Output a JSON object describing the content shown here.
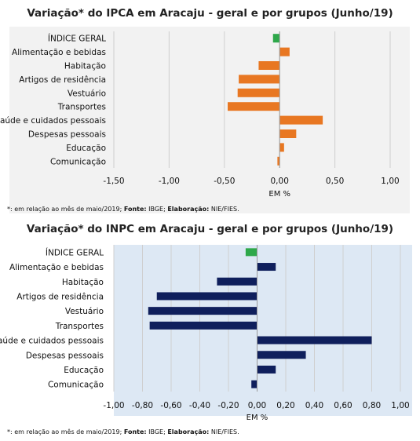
{
  "chart_data": [
    {
      "type": "bar",
      "orientation": "horizontal",
      "title": "Variação* do IPCA em Aracaju - geral e por grupos (Junho/19)",
      "xlabel": "EM %",
      "xlim": [
        -1.5,
        1.0
      ],
      "xticks": [
        "-1,50",
        "-1,00",
        "-0,50",
        "0,00",
        "0,50",
        "1,00"
      ],
      "xtick_values": [
        -1.5,
        -1.0,
        -0.5,
        0.0,
        0.5,
        1.0
      ],
      "categories": [
        "ÍNDICE GERAL",
        "Alimentação e bebidas",
        "Habitação",
        "Artigos de residência",
        "Vestuário",
        "Transportes",
        "Saúde e cuidados pessoais",
        "Despesas pessoais",
        "Educação",
        "Comunicação"
      ],
      "values": [
        -0.06,
        0.09,
        -0.19,
        -0.37,
        -0.38,
        -0.47,
        0.39,
        0.15,
        0.04,
        -0.02
      ],
      "bar_colors": [
        "#2ea84a",
        "#e87722",
        "#e87722",
        "#e87722",
        "#e87722",
        "#e87722",
        "#e87722",
        "#e87722",
        "#e87722",
        "#e87722"
      ],
      "plot_background": "#f2f2f2",
      "grid": "vertical",
      "note": {
        "prefix": "*: em relação ao mês de maio/2019;",
        "fonte_label": "Fonte:",
        "fonte_value": "IBGE;",
        "elab_label": "Elaboração:",
        "elab_value": "NIE/FIES."
      }
    },
    {
      "type": "bar",
      "orientation": "horizontal",
      "title": "Variação* do INPC em Aracaju - geral e por grupos (Junho/19)",
      "xlabel": "EM %",
      "xlim": [
        -1.0,
        1.0
      ],
      "xticks": [
        "-1,00",
        "-0,80",
        "-0,60",
        "-0,40",
        "-0,20",
        "0,00",
        "0,20",
        "0,40",
        "0,60",
        "0,80",
        "1,00"
      ],
      "xtick_values": [
        -1.0,
        -0.8,
        -0.6,
        -0.4,
        -0.2,
        0.0,
        0.2,
        0.4,
        0.6,
        0.8,
        1.0
      ],
      "categories": [
        "ÍNDICE GERAL",
        "Alimentação e bebidas",
        "Habitação",
        "Artigos de residência",
        "Vestuário",
        "Transportes",
        "Saúde e cuidados pessoais",
        "Despesas pessoais",
        "Educação",
        "Comunicação"
      ],
      "values": [
        -0.08,
        0.13,
        -0.28,
        -0.7,
        -0.76,
        -0.75,
        0.8,
        0.34,
        0.13,
        -0.04
      ],
      "bar_colors": [
        "#2ea84a",
        "#0f1f5c",
        "#0f1f5c",
        "#0f1f5c",
        "#0f1f5c",
        "#0f1f5c",
        "#0f1f5c",
        "#0f1f5c",
        "#0f1f5c",
        "#0f1f5c"
      ],
      "plot_background": "#dde8f4",
      "grid": "vertical",
      "note": {
        "prefix": "*: em relação ao mês de maio/2019;",
        "fonte_label": "Fonte:",
        "fonte_value": "IBGE;",
        "elab_label": "Elaboração:",
        "elab_value": "NIE/FIES."
      }
    }
  ]
}
